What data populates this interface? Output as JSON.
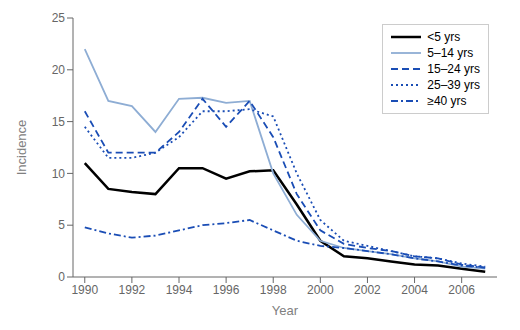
{
  "chart_data": {
    "type": "line",
    "x": [
      1990,
      1991,
      1992,
      1993,
      1994,
      1995,
      1996,
      1997,
      1998,
      1999,
      2000,
      2001,
      2002,
      2003,
      2004,
      2005,
      2006,
      2007
    ],
    "series": [
      {
        "name": "<5 yrs",
        "color": "#000000",
        "line_style": "solid",
        "values": [
          11.0,
          8.5,
          8.2,
          8.0,
          10.5,
          10.5,
          9.5,
          10.2,
          10.3,
          7.0,
          3.5,
          2.0,
          1.8,
          1.5,
          1.2,
          1.1,
          0.8,
          0.5
        ]
      },
      {
        "name": "5–14 yrs",
        "color": "#8eadd4",
        "line_style": "solid",
        "values": [
          22.0,
          17.0,
          16.5,
          14.0,
          17.2,
          17.3,
          16.8,
          17.0,
          10.0,
          6.0,
          3.5,
          2.8,
          2.5,
          2.2,
          1.8,
          1.5,
          1.0,
          0.8
        ]
      },
      {
        "name": "15–24 yrs",
        "color": "#1a4db5",
        "line_style": "dashed",
        "values": [
          16.0,
          12.0,
          12.0,
          12.0,
          14.0,
          17.2,
          14.5,
          17.0,
          13.5,
          8.0,
          4.5,
          3.2,
          2.8,
          2.5,
          2.0,
          1.8,
          1.2,
          0.9
        ]
      },
      {
        "name": "25–39 yrs",
        "color": "#1a4db5",
        "line_style": "dotted",
        "values": [
          14.5,
          11.5,
          11.5,
          12.0,
          13.5,
          16.0,
          16.0,
          16.2,
          15.5,
          10.0,
          5.5,
          3.5,
          3.0,
          2.5,
          2.0,
          1.8,
          1.3,
          1.0
        ]
      },
      {
        "name": "≥40 yrs",
        "color": "#1a4db5",
        "line_style": "dashdot",
        "values": [
          4.8,
          4.2,
          3.8,
          4.0,
          4.5,
          5.0,
          5.2,
          5.5,
          4.5,
          3.5,
          3.0,
          2.8,
          2.5,
          2.2,
          1.8,
          1.5,
          1.1,
          0.9
        ]
      }
    ],
    "xlim": [
      1989.5,
      2007.5
    ],
    "xticks": [
      1990,
      1992,
      1994,
      1996,
      1998,
      2000,
      2002,
      2004,
      2006
    ],
    "ylim": [
      0,
      25
    ],
    "yticks": [
      0,
      5,
      10,
      15,
      20,
      25
    ],
    "xlabel": "Year",
    "ylabel": "Incidence",
    "legend": "upper right",
    "grid": false
  }
}
